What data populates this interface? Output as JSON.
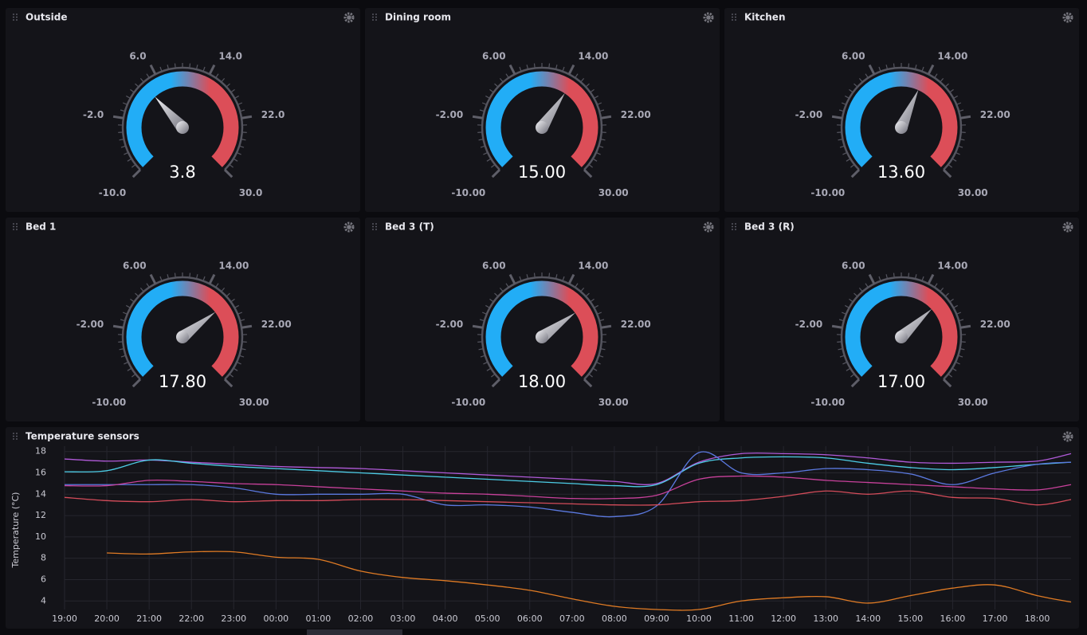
{
  "chart_data": [
    {
      "type": "gauge",
      "title": "Outside",
      "value": 3.8,
      "value_label": "3.8",
      "ylim": [
        -10,
        30
      ],
      "yticks": [
        {
          "value": -10,
          "label": "-10.0"
        },
        {
          "value": -2,
          "label": "-2.0"
        },
        {
          "value": 6,
          "label": "6.0"
        },
        {
          "value": 14,
          "label": "14.0"
        },
        {
          "value": 22,
          "label": "22.0"
        },
        {
          "value": 30,
          "label": "30.0"
        }
      ],
      "colors": [
        "#22adf6",
        "#dc4e58"
      ]
    },
    {
      "type": "gauge",
      "title": "Dining room",
      "value": 15,
      "value_label": "15.00",
      "ylim": [
        -10,
        30
      ],
      "yticks": [
        {
          "value": -10,
          "label": "-10.00"
        },
        {
          "value": -2,
          "label": "-2.00"
        },
        {
          "value": 6,
          "label": "6.00"
        },
        {
          "value": 14,
          "label": "14.00"
        },
        {
          "value": 22,
          "label": "22.00"
        },
        {
          "value": 30,
          "label": "30.00"
        }
      ],
      "colors": [
        "#22adf6",
        "#dc4e58"
      ]
    },
    {
      "type": "gauge",
      "title": "Kitchen",
      "value": 13.6,
      "value_label": "13.60",
      "ylim": [
        -10,
        30
      ],
      "yticks": [
        {
          "value": -10,
          "label": "-10.00"
        },
        {
          "value": -2,
          "label": "-2.00"
        },
        {
          "value": 6,
          "label": "6.00"
        },
        {
          "value": 14,
          "label": "14.00"
        },
        {
          "value": 22,
          "label": "22.00"
        },
        {
          "value": 30,
          "label": "30.00"
        }
      ],
      "colors": [
        "#22adf6",
        "#dc4e58"
      ]
    },
    {
      "type": "gauge",
      "title": "Bed 1",
      "value": 17.8,
      "value_label": "17.80",
      "ylim": [
        -10,
        30
      ],
      "yticks": [
        {
          "value": -10,
          "label": "-10.00"
        },
        {
          "value": -2,
          "label": "-2.00"
        },
        {
          "value": 6,
          "label": "6.00"
        },
        {
          "value": 14,
          "label": "14.00"
        },
        {
          "value": 22,
          "label": "22.00"
        },
        {
          "value": 30,
          "label": "30.00"
        }
      ],
      "colors": [
        "#22adf6",
        "#dc4e58"
      ]
    },
    {
      "type": "gauge",
      "title": "Bed 3 (T)",
      "value": 18,
      "value_label": "18.00",
      "ylim": [
        -10,
        30
      ],
      "yticks": [
        {
          "value": -10,
          "label": "-10.00"
        },
        {
          "value": -2,
          "label": "-2.00"
        },
        {
          "value": 6,
          "label": "6.00"
        },
        {
          "value": 14,
          "label": "14.00"
        },
        {
          "value": 22,
          "label": "22.00"
        },
        {
          "value": 30,
          "label": "30.00"
        }
      ],
      "colors": [
        "#22adf6",
        "#dc4e58"
      ]
    },
    {
      "type": "gauge",
      "title": "Bed 3 (R)",
      "value": 17,
      "value_label": "17.00",
      "ylim": [
        -10,
        30
      ],
      "yticks": [
        {
          "value": -10,
          "label": "-10.00"
        },
        {
          "value": -2,
          "label": "-2.00"
        },
        {
          "value": 6,
          "label": "6.00"
        },
        {
          "value": 14,
          "label": "14.00"
        },
        {
          "value": 22,
          "label": "22.00"
        },
        {
          "value": 30,
          "label": "30.00"
        }
      ],
      "colors": [
        "#22adf6",
        "#dc4e58"
      ]
    },
    {
      "type": "line",
      "title": "Temperature sensors",
      "y_label": "Temperature (°C)",
      "x": [
        0,
        1,
        2,
        3,
        4,
        5,
        6,
        7,
        8,
        9,
        10,
        11,
        12,
        13,
        14,
        15,
        16,
        17,
        18,
        19,
        20,
        21,
        22,
        23,
        23.8
      ],
      "xlim": [
        0,
        23.8
      ],
      "xticks": [
        {
          "value": 0,
          "label": "19:00"
        },
        {
          "value": 1,
          "label": "20:00"
        },
        {
          "value": 2,
          "label": "21:00"
        },
        {
          "value": 3,
          "label": "22:00"
        },
        {
          "value": 4,
          "label": "23:00"
        },
        {
          "value": 5,
          "label": "00:00"
        },
        {
          "value": 6,
          "label": "01:00"
        },
        {
          "value": 7,
          "label": "02:00"
        },
        {
          "value": 8,
          "label": "03:00"
        },
        {
          "value": 9,
          "label": "04:00"
        },
        {
          "value": 10,
          "label": "05:00"
        },
        {
          "value": 11,
          "label": "06:00"
        },
        {
          "value": 12,
          "label": "07:00"
        },
        {
          "value": 13,
          "label": "08:00"
        },
        {
          "value": 14,
          "label": "09:00"
        },
        {
          "value": 15,
          "label": "10:00"
        },
        {
          "value": 16,
          "label": "11:00"
        },
        {
          "value": 17,
          "label": "12:00"
        },
        {
          "value": 18,
          "label": "13:00"
        },
        {
          "value": 19,
          "label": "14:00"
        },
        {
          "value": 20,
          "label": "15:00"
        },
        {
          "value": 21,
          "label": "16:00"
        },
        {
          "value": 22,
          "label": "17:00"
        },
        {
          "value": 23,
          "label": "18:00"
        }
      ],
      "ylim": [
        3.2,
        18.5
      ],
      "yticks": [
        4,
        6,
        8,
        10,
        12,
        14,
        16,
        18
      ],
      "grid": true,
      "series": [
        {
          "color": "#b05ad8",
          "values": [
            17.3,
            17.1,
            17.2,
            17.0,
            16.8,
            16.6,
            16.5,
            16.4,
            16.2,
            16.0,
            15.8,
            15.6,
            15.4,
            15.2,
            15.0,
            17.0,
            17.8,
            17.8,
            17.7,
            17.4,
            17.0,
            16.9,
            17.0,
            17.1,
            17.8
          ]
        },
        {
          "color": "#4dcde6",
          "values": [
            16.1,
            16.2,
            17.2,
            16.9,
            16.6,
            16.4,
            16.2,
            16.0,
            15.8,
            15.6,
            15.4,
            15.2,
            15.0,
            14.8,
            14.9,
            16.9,
            17.4,
            17.5,
            17.4,
            16.9,
            16.5,
            16.3,
            16.5,
            16.8,
            17.0
          ]
        },
        {
          "color": "#5b79e0",
          "values": [
            14.9,
            14.9,
            14.9,
            14.9,
            14.6,
            14.0,
            14.0,
            14.0,
            14.0,
            13.0,
            13.0,
            12.8,
            12.3,
            11.9,
            12.9,
            17.9,
            16.0,
            16.0,
            16.4,
            16.3,
            15.9,
            14.9,
            16.0,
            16.8,
            17.0
          ]
        },
        {
          "color": "#c8419b",
          "values": [
            14.8,
            14.8,
            15.3,
            15.2,
            15.0,
            14.9,
            14.7,
            14.5,
            14.3,
            14.1,
            14.0,
            13.8,
            13.6,
            13.6,
            13.9,
            15.4,
            15.7,
            15.6,
            15.3,
            15.1,
            14.9,
            14.7,
            14.5,
            14.4,
            14.9
          ]
        },
        {
          "color": "#d44c5a",
          "values": [
            13.7,
            13.4,
            13.3,
            13.5,
            13.3,
            13.4,
            13.4,
            13.5,
            13.5,
            13.4,
            13.3,
            13.2,
            13.1,
            13.0,
            13.0,
            13.3,
            13.4,
            13.8,
            14.3,
            14.0,
            14.3,
            13.7,
            13.6,
            13.0,
            13.5
          ]
        },
        {
          "color": "#e07b24",
          "values": [
            null,
            8.5,
            8.4,
            8.6,
            8.6,
            8.1,
            7.9,
            6.8,
            6.2,
            5.9,
            5.5,
            5.0,
            4.2,
            3.5,
            3.2,
            3.2,
            4.0,
            4.3,
            4.4,
            3.8,
            4.5,
            5.2,
            5.5,
            4.5,
            3.9
          ]
        }
      ]
    }
  ]
}
